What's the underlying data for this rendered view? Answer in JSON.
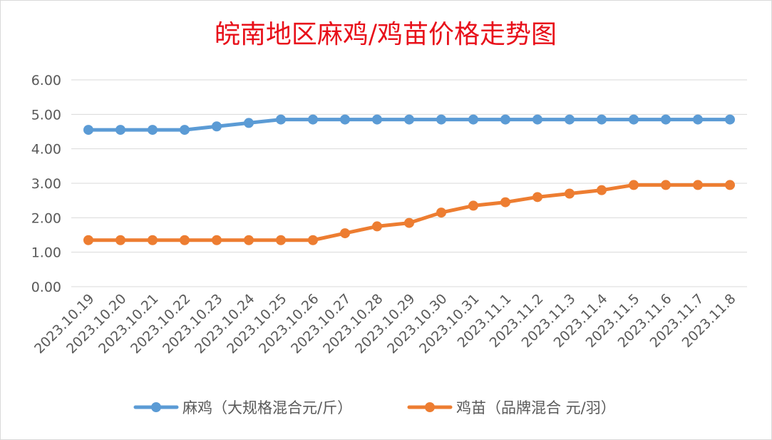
{
  "chart_data": {
    "type": "line",
    "title": "皖南地区麻鸡/鸡苗价格走势图",
    "categories": [
      "2023.10.19",
      "2023.10.20",
      "2023.10.21",
      "2023.10.22",
      "2023.10.23",
      "2023.10.24",
      "2023.10.25",
      "2023.10.26",
      "2023.10.27",
      "2023.10.28",
      "2023.10.29",
      "2023.10.30",
      "2023.10.31",
      "2023.11.1",
      "2023.11.2",
      "2023.11.3",
      "2023.11.4",
      "2023.11.5",
      "2023.11.6",
      "2023.11.7",
      "2023.11.8"
    ],
    "ylim": [
      0,
      6
    ],
    "yticks": [
      "0.00",
      "1.00",
      "2.00",
      "3.00",
      "4.00",
      "5.00",
      "6.00"
    ],
    "grid": true,
    "legend_position": "bottom",
    "series": [
      {
        "name": "麻鸡（大规格混合元/斤）",
        "color": "#5b9bd5",
        "values": [
          4.55,
          4.55,
          4.55,
          4.55,
          4.65,
          4.75,
          4.85,
          4.85,
          4.85,
          4.85,
          4.85,
          4.85,
          4.85,
          4.85,
          4.85,
          4.85,
          4.85,
          4.85,
          4.85,
          4.85,
          4.85
        ]
      },
      {
        "name": "鸡苗（品牌混合 元/羽）",
        "color": "#ed7d31",
        "values": [
          1.35,
          1.35,
          1.35,
          1.35,
          1.35,
          1.35,
          1.35,
          1.35,
          1.55,
          1.75,
          1.85,
          2.15,
          2.35,
          2.45,
          2.6,
          2.7,
          2.8,
          2.95,
          2.95,
          2.95,
          2.95
        ]
      }
    ]
  }
}
